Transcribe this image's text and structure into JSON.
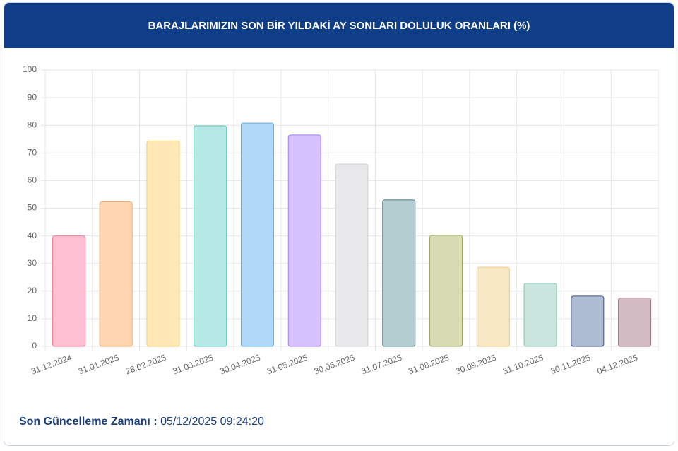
{
  "chart_data": {
    "type": "bar",
    "title": "BARAJLARIMIZIN SON BİR YILDAKİ AY SONLARI DOLULUK ORANLARI (%)",
    "categories": [
      "31.12.2024",
      "31.01.2025",
      "28.02.2025",
      "31.03.2025",
      "30.04.2025",
      "31.05.2025",
      "30.06.2025",
      "31.07.2025",
      "31.08.2025",
      "30.09.2025",
      "31.10.2025",
      "30.11.2025",
      "04.12.2025"
    ],
    "values": [
      40,
      52.3,
      74.3,
      79.8,
      80.8,
      76.5,
      66,
      53,
      40.2,
      28.6,
      22.8,
      18.2,
      17.5
    ],
    "colors": [
      "#ffc1d1",
      "#ffd6b0",
      "#ffe8b5",
      "#b4e9e6",
      "#b0d9f7",
      "#d6c2ff",
      "#e8e8ea",
      "#b4cdd1",
      "#d7dcb4",
      "#f8e8c4",
      "#c9e5dd",
      "#aebcd3",
      "#d4bcc5"
    ],
    "border_colors": [
      "#f27a99",
      "#f5a96a",
      "#f2cc6a",
      "#5fc5bf",
      "#5eacea",
      "#a27ff0",
      "#cfcfd2",
      "#4f7f86",
      "#9aa561",
      "#e8c77a",
      "#86c3ae",
      "#3c5482",
      "#9a6e7f"
    ],
    "ylim": [
      0,
      100
    ],
    "yticks": [
      0,
      10,
      20,
      30,
      40,
      50,
      60,
      70,
      80,
      90,
      100
    ],
    "grid": true
  },
  "footer": {
    "label": "Son Güncelleme Zamanı :",
    "value": "05/12/2025 09:24:20"
  }
}
